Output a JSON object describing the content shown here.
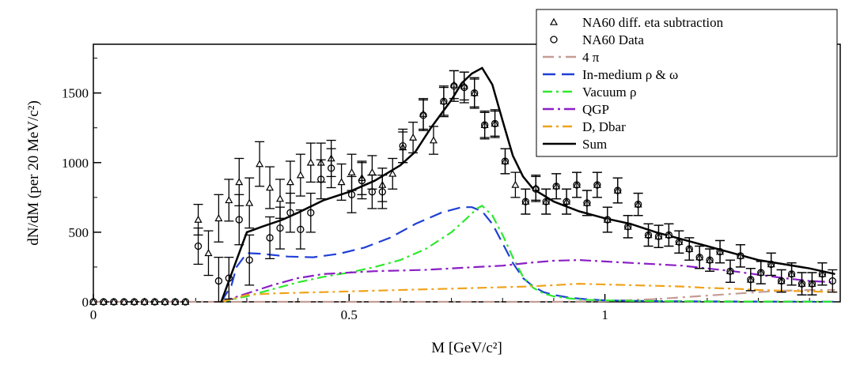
{
  "chart_data": {
    "type": "line",
    "xlabel": "M [GeV/c²]",
    "ylabel": "dN/dM (per 20 MeV/c²)",
    "xlim": [
      0,
      1.46
    ],
    "ylim": [
      0,
      1850
    ],
    "x_ticks": [
      {
        "v": 0,
        "label": "0"
      },
      {
        "v": 0.5,
        "label": "0.5"
      },
      {
        "v": 1,
        "label": "1"
      }
    ],
    "y_ticks": [
      {
        "v": 0,
        "label": "0"
      },
      {
        "v": 500,
        "label": "500"
      },
      {
        "v": 1000,
        "label": "1000"
      },
      {
        "v": 1500,
        "label": "1500"
      }
    ],
    "grid": false,
    "legend_position": "top-right",
    "legend": [
      {
        "name": "NA60 diff. eta subtraction",
        "marker": "triangle"
      },
      {
        "name": "NA60 Data",
        "marker": "circle"
      },
      {
        "name": "4  π",
        "color": "#c49c94",
        "dash": "14 6 3 6"
      },
      {
        "name": "In-medium ρ & ω",
        "color": "#1f3fd6",
        "dash": "16 8"
      },
      {
        "name": "Vacuum  ρ",
        "color": "#2ee82e",
        "dash": "12 5 3 5"
      },
      {
        "name": "QGP",
        "color": "#8a1fc4",
        "dash": "14 5 3 5"
      },
      {
        "name": "D, Dbar",
        "color": "#f0a31c",
        "dash": "12 5 3 5"
      },
      {
        "name": "Sum",
        "color": "#000000",
        "dash": ""
      }
    ],
    "points_eta": [
      {
        "x": 0.0,
        "y": 0,
        "e": 0
      },
      {
        "x": 0.02,
        "y": 0,
        "e": 0
      },
      {
        "x": 0.04,
        "y": 0,
        "e": 0
      },
      {
        "x": 0.06,
        "y": 0,
        "e": 0
      },
      {
        "x": 0.08,
        "y": 0,
        "e": 0
      },
      {
        "x": 0.1,
        "y": 0,
        "e": 0
      },
      {
        "x": 0.12,
        "y": 0,
        "e": 0
      },
      {
        "x": 0.14,
        "y": 0,
        "e": 0
      },
      {
        "x": 0.16,
        "y": 0,
        "e": 0
      },
      {
        "x": 0.18,
        "y": 0,
        "e": 0
      },
      {
        "x": 0.205,
        "y": 590,
        "e": 110
      },
      {
        "x": 0.225,
        "y": 350,
        "e": 160
      },
      {
        "x": 0.245,
        "y": 600,
        "e": 170
      },
      {
        "x": 0.265,
        "y": 730,
        "e": 150
      },
      {
        "x": 0.285,
        "y": 860,
        "e": 170
      },
      {
        "x": 0.305,
        "y": 710,
        "e": 180
      },
      {
        "x": 0.325,
        "y": 990,
        "e": 160
      },
      {
        "x": 0.345,
        "y": 820,
        "e": 150
      },
      {
        "x": 0.365,
        "y": 740,
        "e": 140
      },
      {
        "x": 0.385,
        "y": 860,
        "e": 150
      },
      {
        "x": 0.405,
        "y": 910,
        "e": 150
      },
      {
        "x": 0.425,
        "y": 1000,
        "e": 140
      },
      {
        "x": 0.445,
        "y": 1000,
        "e": 140
      },
      {
        "x": 0.465,
        "y": 1030,
        "e": 130
      },
      {
        "x": 0.485,
        "y": 860,
        "e": 130
      },
      {
        "x": 0.505,
        "y": 930,
        "e": 130
      },
      {
        "x": 0.525,
        "y": 890,
        "e": 120
      },
      {
        "x": 0.545,
        "y": 930,
        "e": 120
      },
      {
        "x": 0.565,
        "y": 840,
        "e": 120
      },
      {
        "x": 0.585,
        "y": 920,
        "e": 110
      },
      {
        "x": 0.605,
        "y": 1110,
        "e": 110
      },
      {
        "x": 0.625,
        "y": 1180,
        "e": 110
      },
      {
        "x": 0.645,
        "y": 1350,
        "e": 110
      },
      {
        "x": 0.665,
        "y": 1160,
        "e": 100
      },
      {
        "x": 0.685,
        "y": 1440,
        "e": 100
      },
      {
        "x": 0.705,
        "y": 1560,
        "e": 100
      },
      {
        "x": 0.725,
        "y": 1550,
        "e": 100
      },
      {
        "x": 0.745,
        "y": 1500,
        "e": 100
      },
      {
        "x": 0.765,
        "y": 1270,
        "e": 90
      },
      {
        "x": 0.785,
        "y": 1280,
        "e": 90
      },
      {
        "x": 0.805,
        "y": 1010,
        "e": 90
      },
      {
        "x": 0.825,
        "y": 840,
        "e": 90
      },
      {
        "x": 0.845,
        "y": 720,
        "e": 90
      },
      {
        "x": 0.865,
        "y": 820,
        "e": 90
      },
      {
        "x": 0.885,
        "y": 720,
        "e": 90
      },
      {
        "x": 0.905,
        "y": 830,
        "e": 90
      },
      {
        "x": 0.925,
        "y": 720,
        "e": 90
      },
      {
        "x": 0.945,
        "y": 840,
        "e": 90
      },
      {
        "x": 0.965,
        "y": 710,
        "e": 90
      },
      {
        "x": 0.985,
        "y": 840,
        "e": 90
      },
      {
        "x": 1.005,
        "y": 590,
        "e": 90
      },
      {
        "x": 1.025,
        "y": 800,
        "e": 90
      },
      {
        "x": 1.045,
        "y": 540,
        "e": 80
      },
      {
        "x": 1.065,
        "y": 700,
        "e": 80
      },
      {
        "x": 1.085,
        "y": 480,
        "e": 80
      },
      {
        "x": 1.105,
        "y": 470,
        "e": 80
      },
      {
        "x": 1.125,
        "y": 480,
        "e": 80
      },
      {
        "x": 1.145,
        "y": 430,
        "e": 80
      },
      {
        "x": 1.165,
        "y": 380,
        "e": 80
      },
      {
        "x": 1.185,
        "y": 320,
        "e": 80
      },
      {
        "x": 1.205,
        "y": 300,
        "e": 80
      },
      {
        "x": 1.225,
        "y": 360,
        "e": 80
      },
      {
        "x": 1.245,
        "y": 220,
        "e": 80
      },
      {
        "x": 1.265,
        "y": 330,
        "e": 80
      },
      {
        "x": 1.285,
        "y": 160,
        "e": 80
      },
      {
        "x": 1.305,
        "y": 210,
        "e": 80
      },
      {
        "x": 1.325,
        "y": 270,
        "e": 80
      },
      {
        "x": 1.345,
        "y": 150,
        "e": 80
      },
      {
        "x": 1.365,
        "y": 200,
        "e": 80
      },
      {
        "x": 1.385,
        "y": 130,
        "e": 80
      },
      {
        "x": 1.405,
        "y": 130,
        "e": 80
      },
      {
        "x": 1.425,
        "y": 200,
        "e": 80
      }
    ],
    "points_data": [
      {
        "x": 0.0,
        "y": 0,
        "e": 0
      },
      {
        "x": 0.02,
        "y": 0,
        "e": 0
      },
      {
        "x": 0.04,
        "y": 0,
        "e": 0
      },
      {
        "x": 0.06,
        "y": 0,
        "e": 0
      },
      {
        "x": 0.08,
        "y": 0,
        "e": 0
      },
      {
        "x": 0.1,
        "y": 0,
        "e": 0
      },
      {
        "x": 0.12,
        "y": 0,
        "e": 0
      },
      {
        "x": 0.14,
        "y": 0,
        "e": 0
      },
      {
        "x": 0.16,
        "y": 0,
        "e": 0
      },
      {
        "x": 0.18,
        "y": 0,
        "e": 0
      },
      {
        "x": 0.205,
        "y": 400,
        "e": 130
      },
      {
        "x": 0.245,
        "y": 150,
        "e": 170
      },
      {
        "x": 0.265,
        "y": 170,
        "e": 150
      },
      {
        "x": 0.285,
        "y": 590,
        "e": 180
      },
      {
        "x": 0.305,
        "y": 300,
        "e": 180
      },
      {
        "x": 0.345,
        "y": 460,
        "e": 150
      },
      {
        "x": 0.365,
        "y": 530,
        "e": 150
      },
      {
        "x": 0.385,
        "y": 640,
        "e": 140
      },
      {
        "x": 0.405,
        "y": 520,
        "e": 140
      },
      {
        "x": 0.425,
        "y": 640,
        "e": 140
      },
      {
        "x": 0.445,
        "y": 880,
        "e": 140
      },
      {
        "x": 0.465,
        "y": 960,
        "e": 140
      },
      {
        "x": 0.505,
        "y": 770,
        "e": 130
      },
      {
        "x": 0.525,
        "y": 870,
        "e": 130
      },
      {
        "x": 0.545,
        "y": 790,
        "e": 120
      },
      {
        "x": 0.565,
        "y": 790,
        "e": 120
      },
      {
        "x": 0.605,
        "y": 1120,
        "e": 120
      },
      {
        "x": 0.645,
        "y": 1340,
        "e": 110
      },
      {
        "x": 0.685,
        "y": 1440,
        "e": 110
      },
      {
        "x": 0.705,
        "y": 1550,
        "e": 110
      },
      {
        "x": 0.725,
        "y": 1540,
        "e": 110
      },
      {
        "x": 0.745,
        "y": 1500,
        "e": 110
      },
      {
        "x": 0.765,
        "y": 1270,
        "e": 100
      },
      {
        "x": 0.785,
        "y": 1280,
        "e": 100
      },
      {
        "x": 0.805,
        "y": 1010,
        "e": 90
      },
      {
        "x": 0.845,
        "y": 720,
        "e": 90
      },
      {
        "x": 0.865,
        "y": 810,
        "e": 90
      },
      {
        "x": 0.885,
        "y": 720,
        "e": 90
      },
      {
        "x": 0.905,
        "y": 830,
        "e": 90
      },
      {
        "x": 0.925,
        "y": 720,
        "e": 90
      },
      {
        "x": 0.945,
        "y": 840,
        "e": 90
      },
      {
        "x": 0.965,
        "y": 710,
        "e": 90
      },
      {
        "x": 0.985,
        "y": 840,
        "e": 90
      },
      {
        "x": 1.005,
        "y": 590,
        "e": 90
      },
      {
        "x": 1.025,
        "y": 800,
        "e": 90
      },
      {
        "x": 1.045,
        "y": 540,
        "e": 80
      },
      {
        "x": 1.065,
        "y": 700,
        "e": 80
      },
      {
        "x": 1.085,
        "y": 480,
        "e": 80
      },
      {
        "x": 1.105,
        "y": 470,
        "e": 80
      },
      {
        "x": 1.125,
        "y": 480,
        "e": 80
      },
      {
        "x": 1.145,
        "y": 430,
        "e": 80
      },
      {
        "x": 1.165,
        "y": 380,
        "e": 80
      },
      {
        "x": 1.185,
        "y": 320,
        "e": 80
      },
      {
        "x": 1.205,
        "y": 300,
        "e": 80
      },
      {
        "x": 1.225,
        "y": 360,
        "e": 80
      },
      {
        "x": 1.245,
        "y": 220,
        "e": 80
      },
      {
        "x": 1.265,
        "y": 330,
        "e": 80
      },
      {
        "x": 1.285,
        "y": 160,
        "e": 80
      },
      {
        "x": 1.305,
        "y": 210,
        "e": 80
      },
      {
        "x": 1.325,
        "y": 270,
        "e": 80
      },
      {
        "x": 1.345,
        "y": 150,
        "e": 80
      },
      {
        "x": 1.365,
        "y": 200,
        "e": 80
      },
      {
        "x": 1.385,
        "y": 130,
        "e": 80
      },
      {
        "x": 1.405,
        "y": 130,
        "e": 80
      },
      {
        "x": 1.425,
        "y": 200,
        "e": 80
      },
      {
        "x": 1.445,
        "y": 150,
        "e": 80
      }
    ],
    "series": [
      {
        "name": "4  π",
        "x": [
          0,
          0.9,
          1.0,
          1.1,
          1.2,
          1.3,
          1.35,
          1.4,
          1.45
        ],
        "y": [
          0,
          0,
          5,
          20,
          45,
          70,
          80,
          85,
          85
        ]
      },
      {
        "name": "In-medium ρ & ω",
        "x": [
          0.25,
          0.27,
          0.28,
          0.3,
          0.33,
          0.38,
          0.43,
          0.48,
          0.53,
          0.58,
          0.63,
          0.68,
          0.72,
          0.74,
          0.76,
          0.78,
          0.8,
          0.82,
          0.84,
          0.86,
          0.88,
          0.9,
          0.93,
          0.96,
          1.0,
          1.1,
          1.2,
          1.3,
          1.4,
          1.45
        ],
        "y": [
          0,
          120,
          250,
          350,
          345,
          325,
          320,
          345,
          390,
          460,
          560,
          640,
          680,
          680,
          650,
          560,
          420,
          280,
          170,
          110,
          70,
          50,
          30,
          20,
          10,
          5,
          3,
          2,
          1,
          1
        ]
      },
      {
        "name": "Vacuum  ρ",
        "x": [
          0.25,
          0.3,
          0.35,
          0.4,
          0.45,
          0.5,
          0.55,
          0.6,
          0.65,
          0.7,
          0.73,
          0.75,
          0.76,
          0.78,
          0.8,
          0.82,
          0.84,
          0.86,
          0.88,
          0.9,
          0.93,
          0.96,
          1.0,
          1.1,
          1.2,
          1.3,
          1.45
        ],
        "y": [
          0,
          40,
          90,
          140,
          180,
          210,
          250,
          300,
          380,
          500,
          600,
          670,
          690,
          620,
          480,
          320,
          180,
          100,
          60,
          40,
          25,
          15,
          10,
          5,
          3,
          2,
          1
        ]
      },
      {
        "name": "QGP",
        "x": [
          0.25,
          0.3,
          0.35,
          0.4,
          0.45,
          0.5,
          0.55,
          0.6,
          0.65,
          0.7,
          0.75,
          0.8,
          0.85,
          0.9,
          0.95,
          1.0,
          1.05,
          1.1,
          1.15,
          1.2,
          1.25,
          1.3,
          1.35,
          1.4,
          1.45
        ],
        "y": [
          0,
          60,
          120,
          170,
          200,
          210,
          220,
          225,
          230,
          240,
          250,
          260,
          280,
          295,
          300,
          290,
          280,
          270,
          260,
          240,
          220,
          195,
          170,
          150,
          140
        ]
      },
      {
        "name": "D, Dbar",
        "x": [
          0.25,
          0.3,
          0.35,
          0.4,
          0.45,
          0.5,
          0.55,
          0.6,
          0.65,
          0.7,
          0.75,
          0.8,
          0.85,
          0.9,
          0.95,
          1.0,
          1.05,
          1.1,
          1.15,
          1.2,
          1.25,
          1.3,
          1.35,
          1.4,
          1.45
        ],
        "y": [
          0,
          50,
          60,
          65,
          70,
          75,
          80,
          85,
          90,
          95,
          100,
          105,
          110,
          120,
          130,
          125,
          120,
          115,
          110,
          100,
          95,
          85,
          80,
          75,
          70
        ]
      },
      {
        "name": "Sum",
        "x": [
          0.25,
          0.28,
          0.3,
          0.33,
          0.37,
          0.4,
          0.45,
          0.5,
          0.55,
          0.6,
          0.63,
          0.66,
          0.7,
          0.72,
          0.74,
          0.76,
          0.78,
          0.8,
          0.82,
          0.84,
          0.86,
          0.9,
          0.95,
          1.0,
          1.05,
          1.1,
          1.15,
          1.2,
          1.25,
          1.3,
          1.35,
          1.4,
          1.45
        ],
        "y": [
          0,
          300,
          500,
          540,
          590,
          640,
          730,
          790,
          870,
          980,
          1080,
          1250,
          1450,
          1570,
          1640,
          1680,
          1560,
          1300,
          1050,
          900,
          810,
          720,
          650,
          600,
          560,
          500,
          450,
          400,
          350,
          300,
          270,
          240,
          200
        ]
      }
    ]
  }
}
